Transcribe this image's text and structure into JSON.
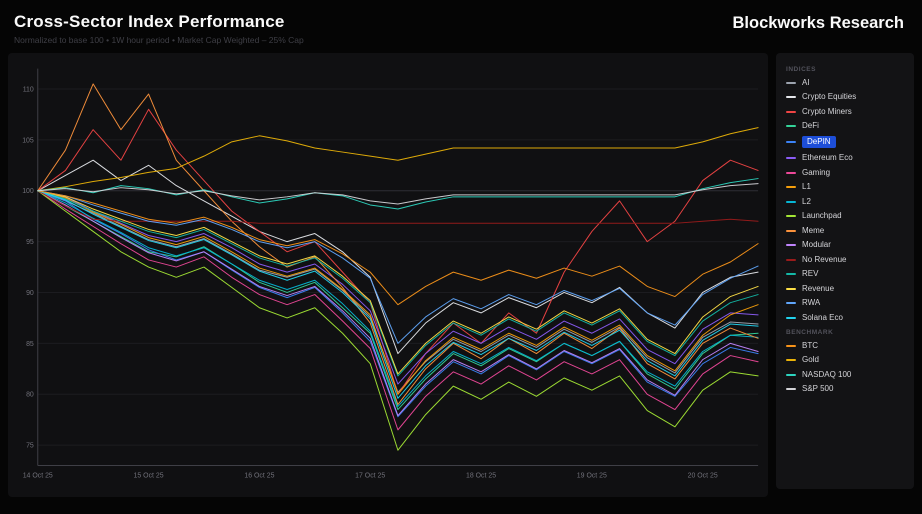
{
  "header": {
    "title": "Cross-Sector Index Performance",
    "subtitle": "Normalized to base 100 • 1W hour period • Market Cap Weighted – 25% Cap",
    "brand": "Blockworks Research"
  },
  "legend": {
    "groups": [
      {
        "label": "INDICES"
      },
      {
        "label": "BENCHMARK"
      }
    ],
    "highlighted": "DePIN"
  },
  "chart_data": {
    "type": "line",
    "title": "Cross-Sector Index Performance",
    "xlabel": "",
    "ylabel": "",
    "xlim": [
      0,
      6.5
    ],
    "ylim": [
      73,
      112
    ],
    "y_ticks": [
      110,
      105,
      100,
      95,
      90,
      85,
      80,
      75
    ],
    "x_ticks": [
      0,
      1,
      2,
      3,
      4,
      5,
      6
    ],
    "x_tick_labels": [
      "14 Oct 25",
      "15 Oct 25",
      "16 Oct 25",
      "17 Oct 25",
      "18 Oct 25",
      "19 Oct 25",
      "20 Oct 25"
    ],
    "grid": true,
    "legend_position": "right",
    "x_start": 0,
    "x_step": 0.25,
    "series": [
      {
        "name": "AI",
        "group": "INDICES",
        "color": "#9ca3af",
        "values": [
          100,
          99,
          97.8,
          96.5,
          95.2,
          94.5,
          95.3,
          93.8,
          92.2,
          91.5,
          92.3,
          90.2,
          87.6,
          80.2,
          83.2,
          85.4,
          84.2,
          85.8,
          84.6,
          86.4,
          85.1,
          86.6,
          83.6,
          82.1,
          85.6,
          87.1,
          86.9
        ]
      },
      {
        "name": "Crypto Equities",
        "group": "INDICES",
        "color": "#e5e7eb",
        "values": [
          100,
          101.5,
          103,
          101,
          102.5,
          100.5,
          99,
          97.5,
          96,
          95,
          95.8,
          94,
          91.5,
          84,
          87,
          89,
          88,
          89.5,
          88.5,
          90,
          89,
          90.5,
          88,
          86.5,
          90,
          91.5,
          92
        ]
      },
      {
        "name": "Crypto Miners",
        "group": "INDICES",
        "color": "#ef4444",
        "values": [
          100,
          102,
          106,
          103,
          108,
          104,
          101,
          98,
          96,
          94,
          95,
          92,
          89,
          80,
          84,
          87,
          85,
          88,
          86,
          92,
          96,
          99,
          95,
          97,
          101,
          103,
          102
        ]
      },
      {
        "name": "DeFi",
        "group": "INDICES",
        "color": "#34d399",
        "values": [
          100,
          98.5,
          97,
          95.5,
          94,
          93.5,
          94.5,
          92.8,
          91,
          90,
          91,
          88.5,
          86,
          78.5,
          81.5,
          84,
          82.8,
          84.5,
          83.2,
          85,
          83.8,
          85.2,
          82,
          80.5,
          84,
          85.8,
          86
        ]
      },
      {
        "name": "DePIN",
        "group": "INDICES",
        "color": "#3b82f6",
        "values": [
          100,
          99,
          97.2,
          95.8,
          94.2,
          93.2,
          94,
          92.2,
          90.5,
          89.5,
          90.5,
          88,
          85.2,
          77.8,
          80.8,
          83.2,
          82,
          83.8,
          82.4,
          84.2,
          83,
          84.4,
          81.2,
          79.8,
          83,
          84.6,
          84
        ]
      },
      {
        "name": "Ethereum Eco",
        "group": "INDICES",
        "color": "#8b5cf6",
        "values": [
          100,
          99.4,
          98,
          96.8,
          95.6,
          95,
          95.8,
          94.4,
          92.8,
          92,
          92.8,
          90.8,
          88.2,
          81,
          84,
          86.2,
          85,
          86.6,
          85.4,
          87.2,
          86,
          87.4,
          84.4,
          83,
          86.4,
          88,
          87.8
        ]
      },
      {
        "name": "Gaming",
        "group": "INDICES",
        "color": "#ec4899",
        "values": [
          100,
          98.2,
          96.5,
          94.8,
          93.2,
          92.5,
          93.5,
          91.5,
          89.8,
          88.8,
          89.8,
          87.2,
          84.5,
          76.5,
          79.8,
          82.2,
          81,
          82.8,
          81.4,
          83.2,
          82,
          83.4,
          80,
          78.5,
          82,
          83.8,
          83.2
        ]
      },
      {
        "name": "L1",
        "group": "INDICES",
        "color": "#f59e0b",
        "values": [
          100,
          99.3,
          97.9,
          96.7,
          95.4,
          94.7,
          95.5,
          94,
          92.4,
          91.6,
          92.4,
          90.3,
          87.8,
          80,
          83.3,
          85.6,
          84.4,
          86,
          84.8,
          86.6,
          85.3,
          86.8,
          83.8,
          82.3,
          85.8,
          87.8,
          88.8
        ]
      },
      {
        "name": "L2",
        "group": "INDICES",
        "color": "#06b6d4",
        "values": [
          100,
          98.8,
          97.3,
          95.9,
          94.4,
          93.6,
          94.4,
          92.8,
          91.2,
          90.3,
          91.2,
          88.9,
          86.2,
          78.8,
          81.8,
          84.2,
          83,
          84.6,
          83.3,
          85,
          83.8,
          85.2,
          82.2,
          80.8,
          84.2,
          85.8,
          85.6
        ]
      },
      {
        "name": "Launchpad",
        "group": "INDICES",
        "color": "#a3e635",
        "values": [
          100,
          98,
          96,
          94,
          92.5,
          91.5,
          92.5,
          90.5,
          88.5,
          87.5,
          88.5,
          86,
          83,
          74.5,
          78,
          80.8,
          79.5,
          81.2,
          79.8,
          81.6,
          80.4,
          81.8,
          78.4,
          76.8,
          80.4,
          82.2,
          81.8
        ]
      },
      {
        "name": "Meme",
        "group": "INDICES",
        "color": "#fb923c",
        "values": [
          100,
          104,
          110.5,
          106,
          109.5,
          103,
          100,
          97,
          94.5,
          92.5,
          93.5,
          90.5,
          87,
          79,
          82.5,
          85,
          83.5,
          85.5,
          84,
          86,
          84.5,
          86.5,
          83,
          81.5,
          85,
          86.5,
          85.5
        ]
      },
      {
        "name": "Modular",
        "group": "INDICES",
        "color": "#c084fc",
        "values": [
          100,
          98.6,
          97,
          95.4,
          93.9,
          93.1,
          94,
          92.3,
          90.6,
          89.7,
          90.6,
          88.2,
          85.5,
          77.9,
          81,
          83.4,
          82.2,
          83.9,
          82.5,
          84.3,
          83.1,
          84.5,
          81.4,
          79.9,
          83.4,
          85,
          84.2
        ]
      },
      {
        "name": "No Revenue",
        "group": "INDICES",
        "color": "#991b1b",
        "values": [
          100,
          98.5,
          97.2,
          97,
          97,
          97,
          97,
          97,
          96.8,
          96.8,
          96.8,
          96.8,
          96.8,
          96.8,
          96.8,
          96.8,
          96.8,
          96.8,
          96.8,
          96.8,
          96.8,
          96.8,
          96.8,
          96.8,
          97,
          97.2,
          97
        ]
      },
      {
        "name": "REV",
        "group": "INDICES",
        "color": "#14b8a6",
        "values": [
          100,
          99.2,
          98,
          97,
          96,
          95.4,
          96.2,
          94.8,
          93.4,
          92.6,
          93.4,
          91.4,
          89,
          81.8,
          84.8,
          87,
          85.8,
          87.4,
          86.2,
          88,
          86.8,
          88.2,
          85.2,
          83.8,
          87.2,
          89,
          89.8
        ]
      },
      {
        "name": "Revenue",
        "group": "INDICES",
        "color": "#fde047",
        "values": [
          100,
          99.4,
          98.2,
          97.2,
          96.2,
          95.6,
          96.4,
          95,
          93.6,
          92.8,
          93.6,
          91.6,
          89.2,
          82,
          85,
          87.2,
          86,
          87.6,
          86.4,
          88.2,
          87,
          88.4,
          85.4,
          84,
          87.6,
          89.6,
          90.6
        ]
      },
      {
        "name": "RWA",
        "group": "INDICES",
        "color": "#60a5fa",
        "values": [
          100,
          99.5,
          98.6,
          97.8,
          97,
          96.6,
          97.2,
          96.2,
          95,
          94.4,
          95,
          93.4,
          91.4,
          85,
          87.6,
          89.4,
          88.4,
          89.8,
          88.8,
          90.2,
          89.2,
          90.4,
          88,
          86.8,
          89.8,
          91.4,
          92.6
        ]
      },
      {
        "name": "Solana Eco",
        "group": "INDICES",
        "color": "#22d3ee",
        "values": [
          100,
          99.1,
          97.7,
          96.4,
          95.1,
          94.4,
          95.2,
          93.7,
          92.1,
          91.2,
          92.1,
          90,
          87.4,
          79.6,
          82.8,
          85.1,
          83.9,
          85.5,
          84.3,
          86.1,
          84.8,
          86.3,
          83.3,
          81.8,
          85.3,
          86.9,
          86.7
        ]
      },
      {
        "name": "BTC",
        "group": "BENCHMARK",
        "color": "#f7931a",
        "values": [
          100,
          99.5,
          98.8,
          98,
          97.2,
          96.8,
          97.4,
          96.4,
          95.2,
          94.6,
          95.2,
          93.8,
          92,
          88.8,
          90.6,
          92,
          91.2,
          92.2,
          91.4,
          92.4,
          91.6,
          92.6,
          90.6,
          89.6,
          91.8,
          93,
          94.8
        ]
      },
      {
        "name": "Gold",
        "group": "BENCHMARK",
        "color": "#eab308",
        "values": [
          100,
          100.4,
          100.9,
          101.3,
          101.8,
          102.2,
          103.4,
          104.8,
          105.4,
          104.9,
          104.2,
          103.8,
          103.4,
          103,
          103.6,
          104.2,
          104.2,
          104.2,
          104.2,
          104.2,
          104.2,
          104.2,
          104.2,
          104.2,
          104.8,
          105.6,
          106.2
        ]
      },
      {
        "name": "NASDAQ 100",
        "group": "BENCHMARK",
        "color": "#2dd4bf",
        "values": [
          100,
          100.3,
          99.8,
          100.5,
          100.2,
          99.6,
          100.1,
          99.4,
          98.8,
          99.2,
          99.8,
          99.5,
          98.6,
          98.2,
          98.9,
          99.4,
          99.4,
          99.4,
          99.4,
          99.4,
          99.4,
          99.4,
          99.4,
          99.4,
          100.2,
          100.8,
          101.2
        ]
      },
      {
        "name": "S&P 500",
        "group": "BENCHMARK",
        "color": "#d4d4d8",
        "values": [
          100,
          100.2,
          99.9,
          100.3,
          100.1,
          99.7,
          100,
          99.5,
          99.1,
          99.4,
          99.8,
          99.6,
          99,
          98.7,
          99.2,
          99.6,
          99.6,
          99.6,
          99.6,
          99.6,
          99.6,
          99.6,
          99.6,
          99.6,
          100.1,
          100.5,
          100.7
        ]
      }
    ]
  }
}
